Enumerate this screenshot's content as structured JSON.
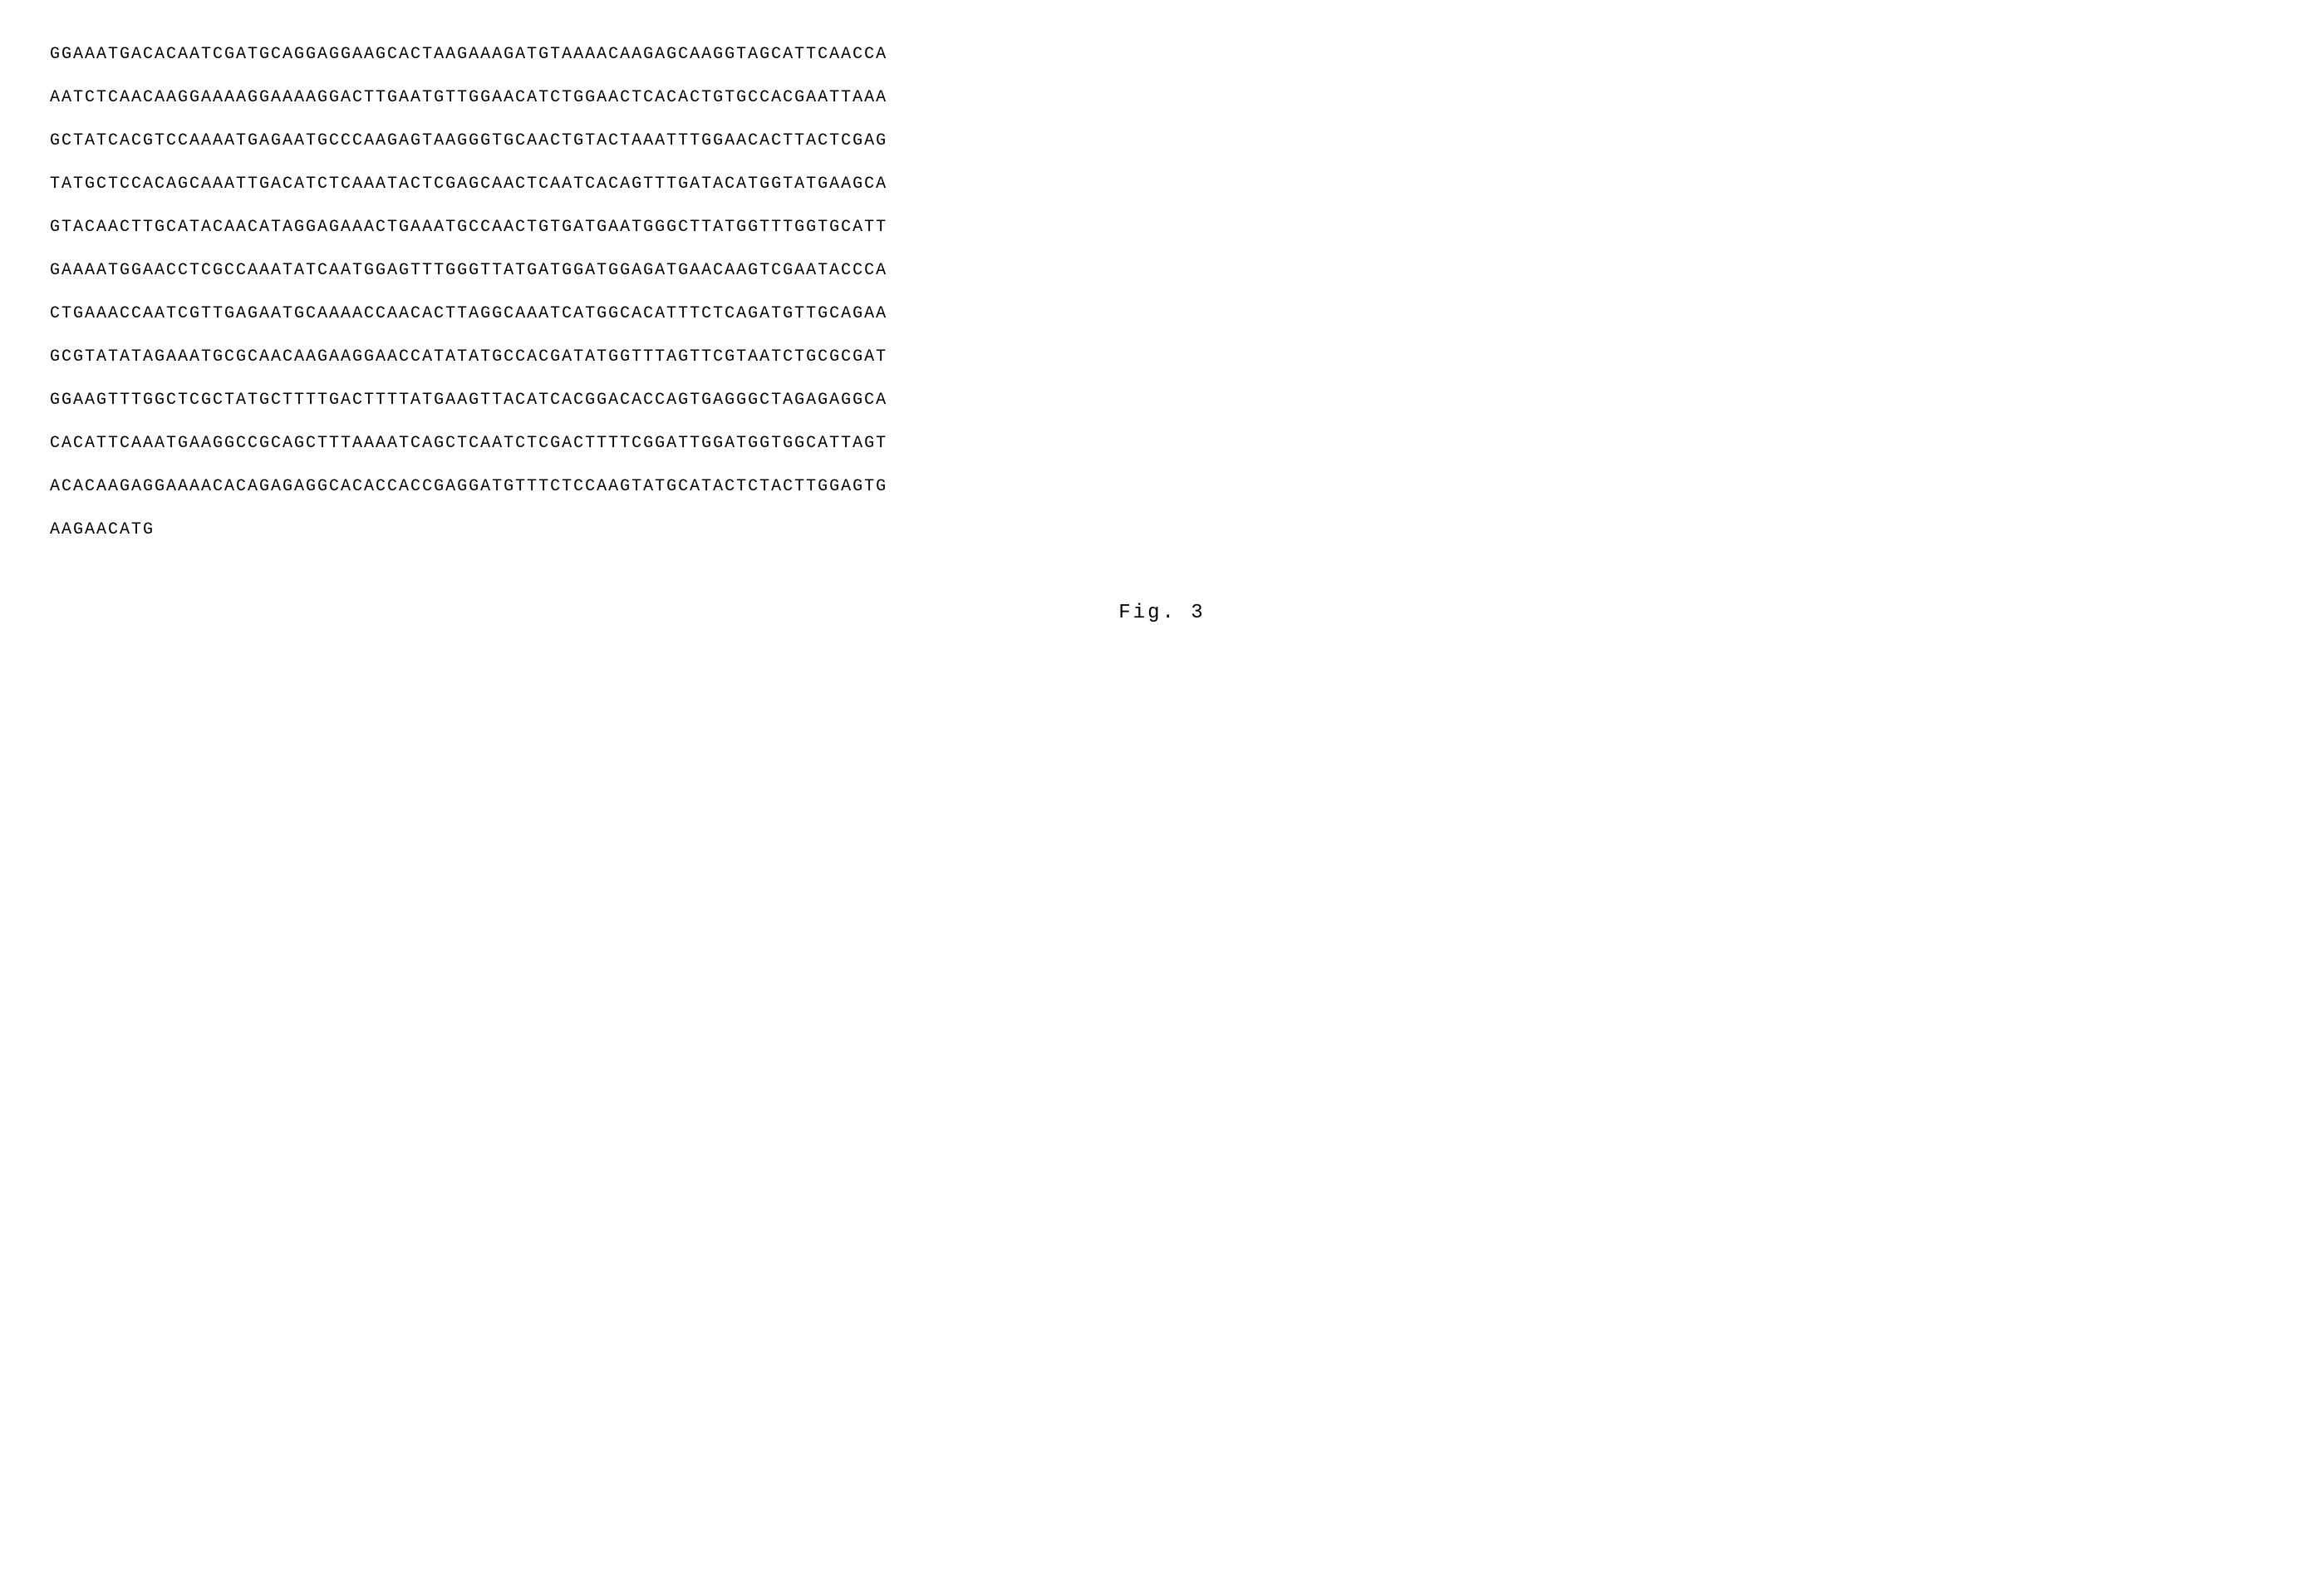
{
  "sequence": {
    "lines": [
      "GGAAATGACACAATCGATGCAGGAGGAAGCACTAAGAAAGATGTAAAACAAGAGCAAGGTAGCATTCAACCA",
      "AATCTCAACAAGGAAAAGGAAAAGGACTTGAATGTTGGAACATCTGGAACTCACACTGTGCCACGAATTAAA",
      "GCTATCACGTCCAAAATGAGAATGCCCAAGAGTAAGGGTGCAACTGTACTAAATTTGGAACACTTACTCGAG",
      "TATGCTCCACAGCAAATTGACATCTCAAATACTCGAGCAACTCAATCACAGTTTGATACATGGTATGAAGCA",
      "GTACAACTTGCATACAACATAGGAGAAACTGAAATGCCAACTGTGATGAATGGGCTTATGGTTTGGTGCATT",
      "GAAAATGGAACCTCGCCAAATATCAATGGAGTTTGGGTTATGATGGATGGAGATGAACAAGTCGAATACCCA",
      "CTGAAACCAATCGTTGAGAATGCAAAACCAACACTTAGGCAAATCATGGCACATTTCTCAGATGTTGCAGAA",
      "GCGTATATAGAAATGCGCAACAAGAAGGAACCATATATGCCACGATATGGTTTAGTTCGTAATCTGCGCGAT",
      "GGAAGTTTGGCTCGCTATGCTTTTGACTTTTATGAAGTTACATCACGGACACCAGTGAGGGCTAGAGAGGCA",
      "CACATTCAAATGAAGGCCGCAGCTTTAAAATCAGCTCAATCTCGACTTTTCGGATTGGATGGTGGCATTAGT",
      "ACACAAGAGGAAAACACAGAGAGGCACACCACCGAGGATGTTTCTCCAAGTATGCATACTCTACTTGGAGTG",
      "AAGAACATG"
    ]
  },
  "caption": "Fig. 3",
  "styles": {
    "font_family": "Courier New",
    "text_color": "#000000",
    "background_color": "#ffffff",
    "sequence_fontsize": 20,
    "caption_fontsize": 24,
    "letter_spacing": 2,
    "line_height": 2.6
  }
}
